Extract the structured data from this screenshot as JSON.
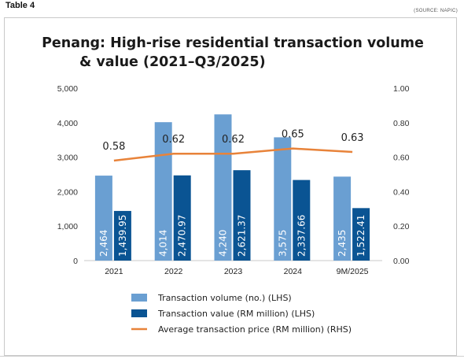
{
  "header": {
    "table_label": "Table 4",
    "source": "(SOURCE: NAPIC)"
  },
  "chart_data": {
    "type": "bar",
    "title_lines": [
      "Penang: High-rise residential transaction volume",
      "& value (2021–Q3/2025)"
    ],
    "categories": [
      "2021",
      "2022",
      "2023",
      "2024",
      "9M/2025"
    ],
    "y_left": {
      "lim": [
        0,
        5000
      ],
      "ticks": [
        0,
        1000,
        2000,
        3000,
        4000,
        5000
      ],
      "tick_labels": [
        "0",
        "1,000",
        "2,000",
        "3,000",
        "4,000",
        "5,000"
      ]
    },
    "y_right": {
      "lim": [
        0,
        1.0
      ],
      "ticks": [
        0,
        0.2,
        0.4,
        0.6,
        0.8,
        1.0
      ],
      "tick_labels": [
        "0.00",
        "0.20",
        "0.40",
        "0.60",
        "0.80",
        "1.00"
      ]
    },
    "series": [
      {
        "name": "Transaction volume (no.) (LHS)",
        "kind": "bar",
        "axis": "left",
        "color": "#6a9fd2",
        "values": [
          2464,
          4014,
          4240,
          3575,
          2435
        ],
        "labels": [
          "2,464",
          "4,014",
          "4,240",
          "3,575",
          "2,435"
        ]
      },
      {
        "name": "Transaction value (RM million) (LHS)",
        "kind": "bar",
        "axis": "left",
        "color": "#0a5493",
        "values": [
          1439.95,
          2470.97,
          2621.37,
          2337.66,
          1522.41
        ],
        "labels": [
          "1,439.95",
          "2,470.97",
          "2,621.37",
          "2,337.66",
          "1,522.41"
        ]
      },
      {
        "name": "Average transaction price (RM million) (RHS)",
        "kind": "line",
        "axis": "right",
        "color": "#e8833a",
        "values": [
          0.58,
          0.62,
          0.62,
          0.65,
          0.63
        ],
        "labels": [
          "0.58",
          "0.62",
          "0.62",
          "0.65",
          "0.63"
        ]
      }
    ],
    "legend_position": "bottom",
    "grid": false
  }
}
